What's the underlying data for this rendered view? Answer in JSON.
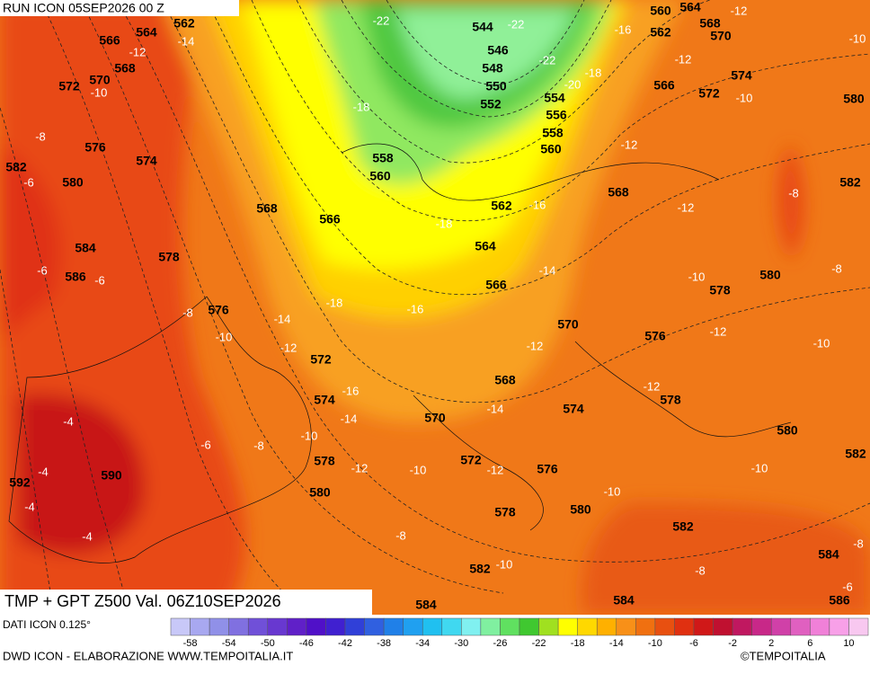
{
  "header": {
    "run": "RUN ICON 05SEP2026 00 Z"
  },
  "map": {
    "title": "TMP + GPT Z500 Val. 06Z10SEP2026",
    "gpt_labels": [
      562,
      564,
      566,
      568,
      570,
      572,
      576,
      574,
      582,
      580,
      568,
      566,
      584,
      586,
      578,
      576,
      572,
      574,
      578,
      580,
      592,
      590,
      558,
      560,
      544,
      546,
      548,
      550,
      552,
      554,
      556,
      558,
      560,
      562,
      564,
      566,
      570,
      568,
      570,
      572,
      576,
      578,
      580,
      582,
      584,
      584,
      586,
      584,
      582,
      580,
      582,
      578,
      574,
      576,
      578,
      580,
      568,
      566,
      572,
      574,
      562,
      570,
      568,
      564,
      560,
      580,
      582
    ],
    "tmp_labels": [
      -14,
      -12,
      -10,
      -8,
      -6,
      -6,
      -6,
      -8,
      -10,
      -14,
      -12,
      -18,
      -22,
      -22,
      -22,
      -20,
      -18,
      -16,
      -12,
      -10,
      -12,
      -10,
      -12,
      -8,
      -12,
      -18,
      -16,
      -18,
      -16,
      -14,
      -10,
      -8,
      -12,
      -10,
      -12,
      -12,
      -16,
      -14,
      -14,
      -10,
      -8,
      -6,
      -4,
      -4,
      -4,
      -4,
      -12,
      -10,
      -12,
      -10,
      -10,
      -8,
      -10,
      -8,
      -6,
      -8
    ]
  },
  "legend": {
    "source": "DATI ICON 0.125°",
    "ticks": [
      -58,
      -54,
      -50,
      -46,
      -42,
      -38,
      -34,
      -30,
      -26,
      -22,
      -18,
      -14,
      -10,
      -6,
      -2,
      2,
      6,
      10
    ]
  },
  "footer": {
    "credit": "DWD ICON - ELABORAZIONE WWW.TEMPOITALIA.IT",
    "brand": "©TEMPOITALIA"
  }
}
